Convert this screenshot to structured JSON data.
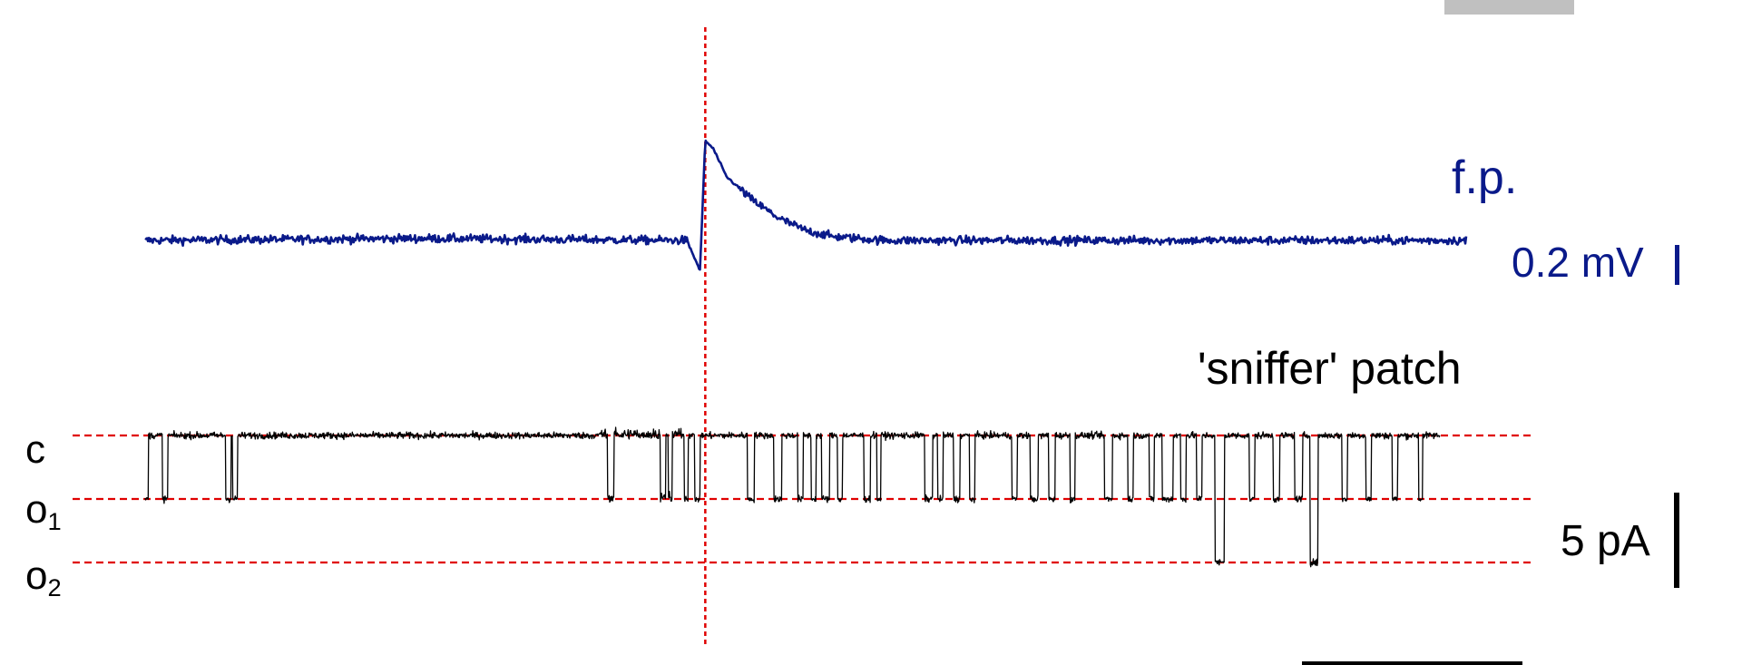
{
  "chart_data": {
    "type": "line",
    "title": "",
    "traces": [
      {
        "name": "f.p.",
        "units": "mV",
        "color": "#0a1a8a",
        "baseline": 0.0,
        "noise_sd": 0.02,
        "x": [
          0.0,
          1.05,
          2.05,
          2.1,
          2.12,
          2.15,
          2.2,
          2.3,
          2.4,
          2.5,
          2.6,
          2.8,
          3.0,
          3.2,
          5.0
        ],
        "y": [
          0.0,
          0.01,
          0.0,
          -0.15,
          0.5,
          0.46,
          0.32,
          0.2,
          0.11,
          0.05,
          0.02,
          0.0,
          0.0,
          0.0,
          0.0
        ]
      },
      {
        "name": "'sniffer' patch",
        "units": "pA",
        "color": "#000000",
        "noise_sd": 0.25,
        "levels": [
          {
            "label": "c",
            "value": 0
          },
          {
            "label": "o1",
            "value": -5
          },
          {
            "label": "o2",
            "value": -10
          }
        ],
        "openings": [
          [
            0.0,
            0.012
          ],
          [
            0.065,
            0.02
          ],
          [
            0.305,
            0.02
          ],
          [
            0.33,
            0.02
          ],
          [
            1.75,
            0.025
          ],
          [
            1.95,
            0.02
          ],
          [
            1.98,
            0.015
          ],
          [
            2.04,
            0.015
          ],
          [
            2.08,
            0.02
          ],
          [
            2.28,
            0.025
          ],
          [
            2.38,
            0.03
          ],
          [
            2.47,
            0.02
          ],
          [
            2.52,
            0.02
          ],
          [
            2.56,
            0.03
          ],
          [
            2.62,
            0.02
          ],
          [
            2.72,
            0.025
          ],
          [
            2.77,
            0.015
          ],
          [
            2.95,
            0.03
          ],
          [
            3.0,
            0.02
          ],
          [
            3.06,
            0.025
          ],
          [
            3.12,
            0.02
          ],
          [
            3.28,
            0.02
          ],
          [
            3.35,
            0.03
          ],
          [
            3.42,
            0.025
          ],
          [
            3.5,
            0.02
          ],
          [
            3.63,
            0.03
          ],
          [
            3.72,
            0.02
          ],
          [
            3.8,
            0.02
          ],
          [
            3.85,
            0.04
          ],
          [
            3.92,
            0.02
          ],
          [
            3.98,
            0.02
          ],
          [
            4.05,
            0.035,
            -10
          ],
          [
            4.18,
            0.02
          ],
          [
            4.27,
            0.025
          ],
          [
            4.35,
            0.03
          ],
          [
            4.41,
            0.03,
            -10
          ],
          [
            4.53,
            0.02
          ],
          [
            4.62,
            0.02
          ],
          [
            4.72,
            0.02
          ],
          [
            4.82,
            0.015
          ]
        ]
      }
    ],
    "event_marker_x": 2.12,
    "x_range": [
      0,
      5
    ],
    "annotations": {
      "fp_label": "f.p.",
      "fp_scale_label": "0.2 mV",
      "fp_scale_value": 0.2,
      "patch_label": "'sniffer' patch",
      "patch_scale_label": "5 pA",
      "patch_scale_value": 5
    },
    "level_labels": [
      {
        "base": "c",
        "sub": ""
      },
      {
        "base": "o",
        "sub": "1"
      },
      {
        "base": "o",
        "sub": "2"
      }
    ],
    "colors": {
      "fp_trace": "#0a1a8a",
      "patch_trace": "#000000",
      "reference_lines": "#e00000",
      "scale_bar_top": "#c0c0c0"
    }
  }
}
